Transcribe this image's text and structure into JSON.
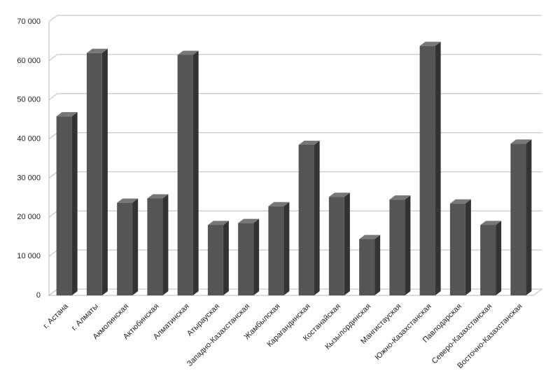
{
  "chart_data": {
    "type": "bar",
    "categories": [
      "г. Астана",
      "г. Алматы",
      "Акмолинская",
      "Актюбинская",
      "Алматинская",
      "Атырауская",
      "Западно-Казахстанская",
      "Жамбылская",
      "Карагандинская",
      "Костанайская",
      "Кызылординская",
      "Мангистауская",
      "Южно-Казахстанская",
      "Павлодарская",
      "Северо-Казахстанская",
      "Восточно-Казахстанская"
    ],
    "values": [
      45800,
      62000,
      23700,
      24800,
      61500,
      18000,
      18500,
      22800,
      38500,
      25200,
      14400,
      24500,
      63800,
      23500,
      18000,
      38800
    ],
    "color": "#555555",
    "ylim": [
      0,
      70000
    ],
    "yticks": [
      0,
      {
        "value": 10000,
        "label": "10 000"
      },
      {
        "value": 20000,
        "label": "20 000"
      },
      {
        "value": 30000,
        "label": "30 000"
      },
      {
        "value": 40000,
        "label": "40 000"
      },
      {
        "value": 50000,
        "label": "50 000"
      },
      {
        "value": 60000,
        "label": "60 000"
      },
      {
        "value": 70000,
        "label": "70 000"
      }
    ],
    "grid": true
  }
}
